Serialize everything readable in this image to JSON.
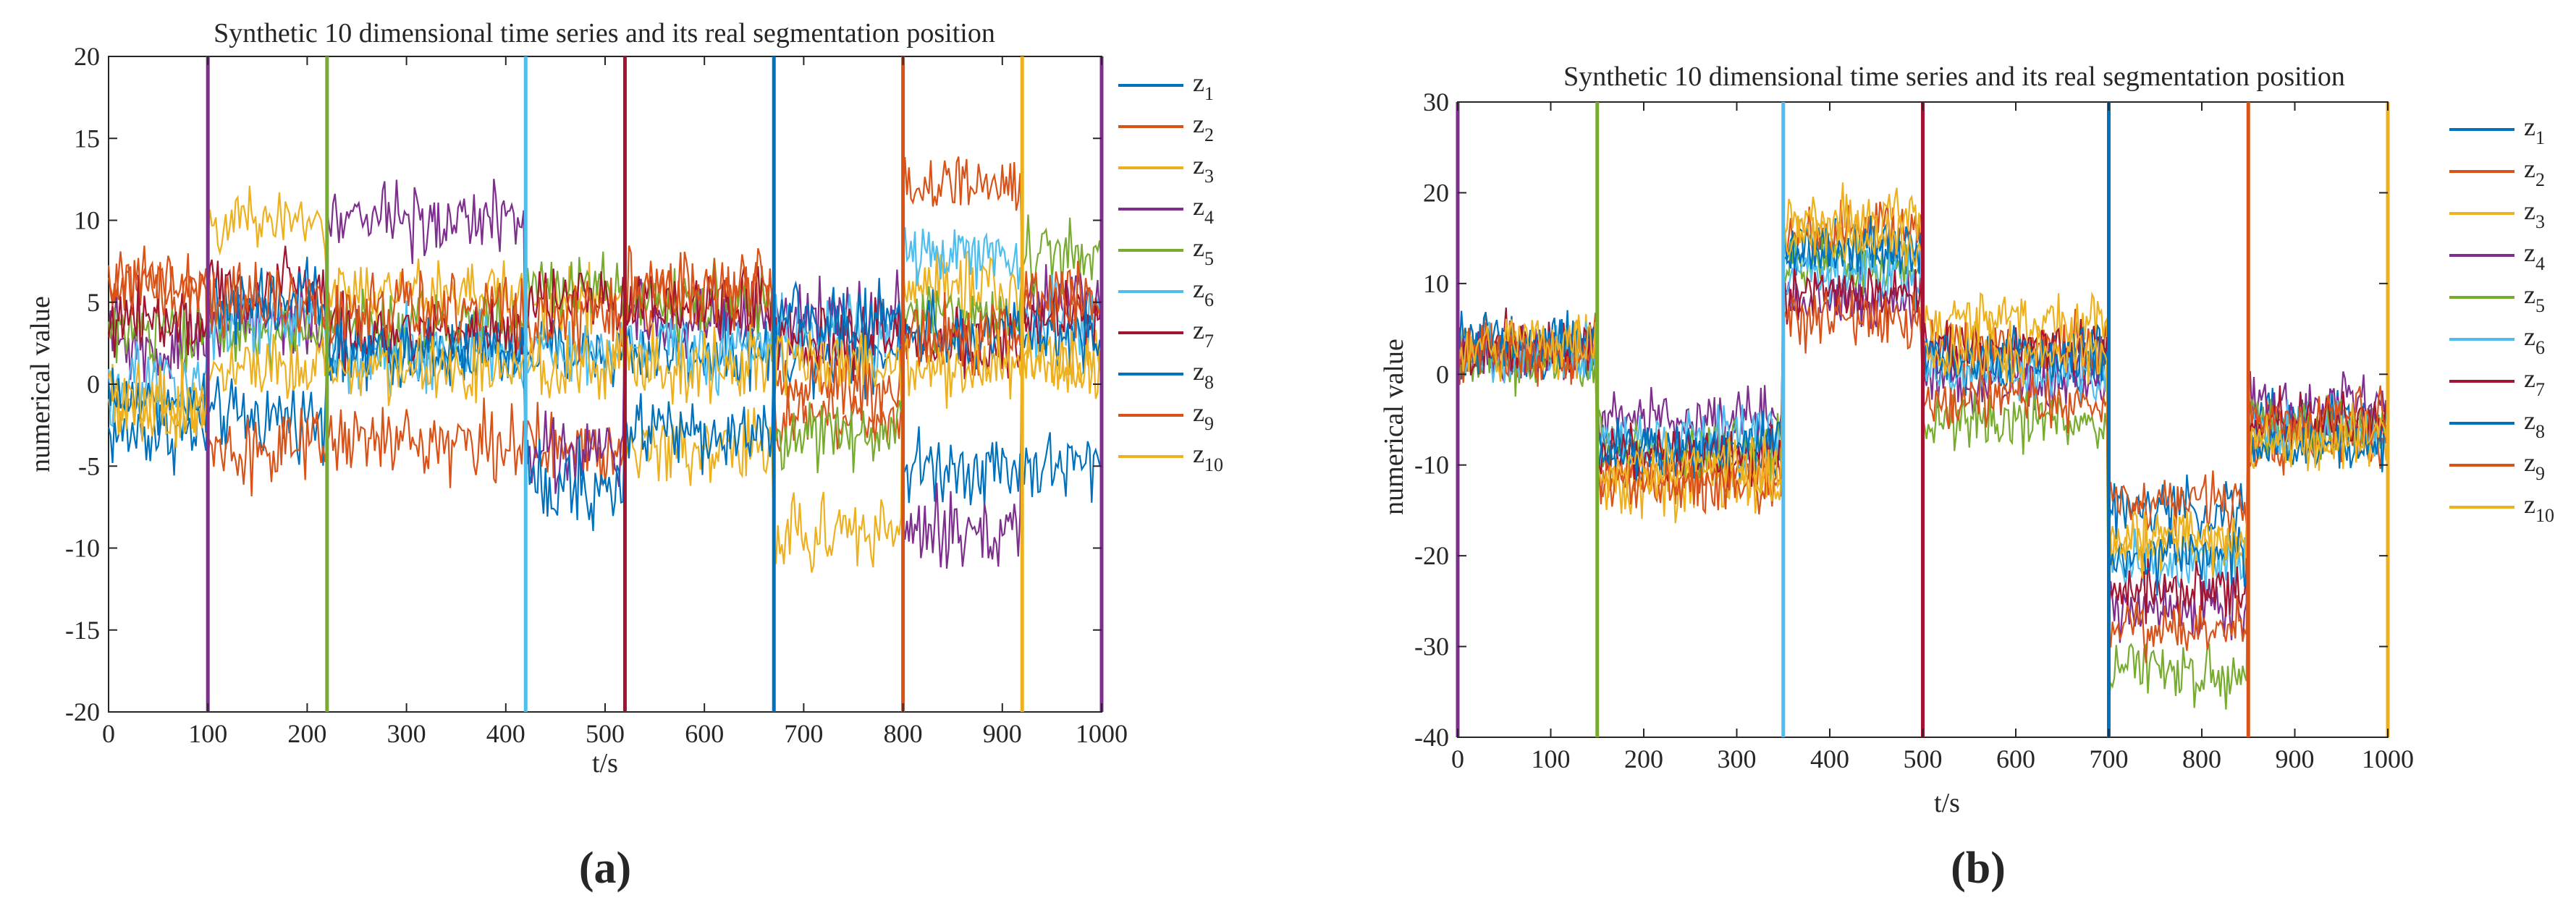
{
  "series_colors": [
    "#0072BD",
    "#D95319",
    "#EDB120",
    "#7E2F8E",
    "#77AC30",
    "#4DBEEE",
    "#A2142F",
    "#0072BD",
    "#D95319",
    "#EDB120"
  ],
  "chart_data": [
    {
      "type": "line",
      "title": "Synthetic 10 dimensional time series and its real segmentation position",
      "xlabel": "t/s",
      "ylabel": "numerical value",
      "xlim": [
        0,
        1000
      ],
      "ylim": [
        -20,
        20
      ],
      "xticks": [
        0,
        100,
        200,
        300,
        400,
        500,
        600,
        700,
        800,
        900,
        1000
      ],
      "yticks": [
        -20,
        -15,
        -10,
        -5,
        0,
        5,
        10,
        15,
        20
      ],
      "grid": false,
      "legend_position": "outside-right",
      "legend": [
        {
          "base": "z",
          "sub": "1"
        },
        {
          "base": "z",
          "sub": "2"
        },
        {
          "base": "z",
          "sub": "3"
        },
        {
          "base": "z",
          "sub": "4"
        },
        {
          "base": "z",
          "sub": "5"
        },
        {
          "base": "z",
          "sub": "6"
        },
        {
          "base": "z",
          "sub": "7"
        },
        {
          "base": "z",
          "sub": "8"
        },
        {
          "base": "z",
          "sub": "9"
        },
        {
          "base": "z",
          "sub": "10"
        }
      ],
      "segment_boundaries": [
        {
          "x": 100,
          "color": "#7E2F8E"
        },
        {
          "x": 220,
          "color": "#77AC30"
        },
        {
          "x": 420,
          "color": "#4DBEEE"
        },
        {
          "x": 520,
          "color": "#A2142F"
        },
        {
          "x": 670,
          "color": "#0072BD"
        },
        {
          "x": 800,
          "color": "#D95319"
        },
        {
          "x": 920,
          "color": "#EDB120"
        },
        {
          "x": 1000,
          "color": "#7E2F8E"
        }
      ],
      "segments": [
        0,
        100,
        220,
        420,
        520,
        670,
        800,
        920,
        1000
      ],
      "noise_amplitude": 1.1,
      "series_means": [
        {
          "name": "z1",
          "means": [
            -3,
            -2,
            2,
            2,
            2,
            2,
            -5,
            -5
          ]
        },
        {
          "name": "z2",
          "means": [
            6,
            -4,
            -3.5,
            -4,
            5,
            -2,
            12,
            5
          ]
        },
        {
          "name": "z3",
          "means": [
            -1.5,
            10,
            5.5,
            5,
            -4,
            -9,
            6,
            1.5
          ]
        },
        {
          "name": "z4",
          "means": [
            2.5,
            4,
            10,
            -4,
            4,
            4,
            -9,
            5
          ]
        },
        {
          "name": "z5",
          "means": [
            3,
            3,
            3.5,
            6,
            5,
            -3,
            4,
            8
          ]
        },
        {
          "name": "z6",
          "means": [
            0,
            4,
            2,
            2,
            2,
            3,
            8,
            4
          ]
        },
        {
          "name": "z7",
          "means": [
            4,
            6,
            3,
            5,
            5,
            3,
            2.5,
            4
          ]
        },
        {
          "name": "z8",
          "means": [
            -1,
            5,
            2,
            -6,
            -3,
            4,
            3,
            3
          ]
        },
        {
          "name": "z9",
          "means": [
            6,
            5,
            4.5,
            4,
            6,
            0,
            3,
            5
          ]
        },
        {
          "name": "z10",
          "means": [
            -1,
            1,
            1,
            1,
            1,
            1,
            1,
            1
          ]
        }
      ],
      "caption": "(a)"
    },
    {
      "type": "line",
      "title": "Synthetic 10 dimensional time series and its real segmentation position",
      "xlabel": "t/s",
      "ylabel": "numerical value",
      "xlim": [
        0,
        1000
      ],
      "ylim": [
        -40,
        30
      ],
      "xticks": [
        0,
        100,
        200,
        300,
        400,
        500,
        600,
        700,
        800,
        900,
        1000
      ],
      "yticks": [
        -40,
        -30,
        -20,
        -10,
        0,
        10,
        20,
        30
      ],
      "grid": false,
      "legend_position": "outside-right",
      "legend": [
        {
          "base": "z",
          "sub": "1"
        },
        {
          "base": "z",
          "sub": "2"
        },
        {
          "base": "z",
          "sub": "3"
        },
        {
          "base": "z",
          "sub": "4"
        },
        {
          "base": "z",
          "sub": "5"
        },
        {
          "base": "z",
          "sub": "6"
        },
        {
          "base": "z",
          "sub": "7"
        },
        {
          "base": "z",
          "sub": "8"
        },
        {
          "base": "z",
          "sub": "9"
        },
        {
          "base": "z",
          "sub": "10"
        }
      ],
      "segment_boundaries": [
        {
          "x": 0,
          "color": "#7E2F8E"
        },
        {
          "x": 150,
          "color": "#77AC30"
        },
        {
          "x": 350,
          "color": "#4DBEEE"
        },
        {
          "x": 500,
          "color": "#A2142F"
        },
        {
          "x": 700,
          "color": "#0072BD"
        },
        {
          "x": 850,
          "color": "#D95319"
        },
        {
          "x": 1000,
          "color": "#EDB120"
        }
      ],
      "segments": [
        0,
        150,
        350,
        500,
        700,
        850,
        1000
      ],
      "noise_amplitude": 1.6,
      "series_means": [
        {
          "name": "z1",
          "means": [
            2,
            -9,
            14,
            1,
            -15,
            -5
          ]
        },
        {
          "name": "z2",
          "means": [
            3,
            -11,
            16,
            3,
            -14,
            -7
          ]
        },
        {
          "name": "z3",
          "means": [
            3,
            -12,
            17,
            6,
            -19,
            -7
          ]
        },
        {
          "name": "z4",
          "means": [
            2,
            -5,
            8,
            -1,
            -26,
            -3
          ]
        },
        {
          "name": "z5",
          "means": [
            1,
            -8,
            12,
            -5,
            -33,
            -6
          ]
        },
        {
          "name": "z6",
          "means": [
            2,
            -7,
            11,
            0,
            -21,
            -6
          ]
        },
        {
          "name": "z7",
          "means": [
            3,
            -9,
            9,
            3,
            -24,
            -5
          ]
        },
        {
          "name": "z8",
          "means": [
            4,
            -8,
            14,
            2,
            -20,
            -8
          ]
        },
        {
          "name": "z9",
          "means": [
            2,
            -12,
            6,
            -3,
            -28,
            -5
          ]
        },
        {
          "name": "z10",
          "means": [
            3,
            -10,
            15,
            2,
            -18,
            -7
          ]
        }
      ],
      "caption": "(b)"
    }
  ]
}
